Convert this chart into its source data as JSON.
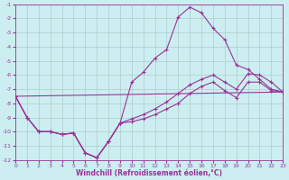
{
  "xlabel": "Windchill (Refroidissement éolien,°C)",
  "xlim": [
    0,
    23
  ],
  "ylim": [
    -12,
    -1
  ],
  "xticks": [
    0,
    1,
    2,
    3,
    4,
    5,
    6,
    7,
    8,
    9,
    10,
    11,
    12,
    13,
    14,
    15,
    16,
    17,
    18,
    19,
    20,
    21,
    22,
    23
  ],
  "yticks": [
    -1,
    -2,
    -3,
    -4,
    -5,
    -6,
    -7,
    -8,
    -9,
    -10,
    -11,
    -12
  ],
  "background_color": "#cceef0",
  "line_color": "#993399",
  "grid_color": "#aacccc",
  "line1_x": [
    0,
    1,
    2,
    3,
    4,
    5,
    6,
    7,
    8,
    9,
    10,
    11,
    12,
    13,
    14,
    15,
    16,
    17,
    18,
    19,
    20,
    21,
    22,
    23
  ],
  "line1_y": [
    -7.5,
    -9.0,
    -10.0,
    -10.0,
    -10.2,
    -10.1,
    -11.5,
    -11.85,
    -10.7,
    -9.4,
    -6.5,
    -5.8,
    -4.8,
    -4.2,
    -1.9,
    -1.2,
    -1.6,
    -2.7,
    -3.5,
    -5.3,
    -5.6,
    -6.3,
    -7.0,
    -7.2
  ],
  "line2_x": [
    0,
    1,
    2,
    3,
    4,
    5,
    6,
    7,
    8,
    9,
    10,
    11,
    12,
    13,
    14,
    15,
    16,
    17,
    18,
    19,
    20,
    21,
    22,
    23
  ],
  "line2_y": [
    -7.5,
    -9.0,
    -10.0,
    -10.0,
    -10.2,
    -10.1,
    -11.5,
    -11.85,
    -10.7,
    -9.4,
    -9.3,
    -9.1,
    -8.8,
    -8.4,
    -8.0,
    -7.3,
    -6.8,
    -6.5,
    -7.1,
    -7.6,
    -6.5,
    -6.5,
    -7.1,
    -7.2
  ],
  "line3_x": [
    0,
    1,
    2,
    3,
    4,
    5,
    6,
    7,
    8,
    9,
    10,
    11,
    12,
    13,
    14,
    15,
    16,
    17,
    18,
    19,
    20,
    21,
    22,
    23
  ],
  "line3_y": [
    -7.5,
    -9.0,
    -10.0,
    -10.0,
    -10.2,
    -10.1,
    -11.5,
    -11.85,
    -10.7,
    -9.4,
    -9.1,
    -8.8,
    -8.4,
    -7.9,
    -7.3,
    -6.7,
    -6.3,
    -6.0,
    -6.5,
    -7.0,
    -5.9,
    -6.0,
    -6.5,
    -7.2
  ],
  "line4_x": [
    0,
    23
  ],
  "line4_y": [
    -7.5,
    -7.2
  ],
  "marker": "+"
}
